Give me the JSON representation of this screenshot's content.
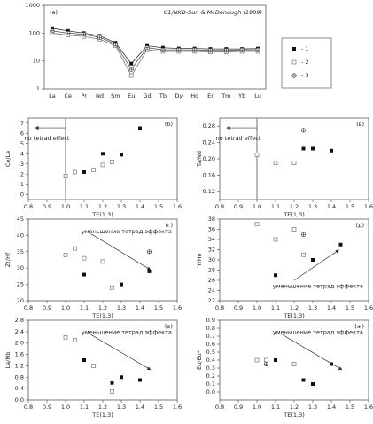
{
  "chart_data": [
    {
      "type": "line",
      "label": "(a)",
      "subtitle": "C1/NKD-Sun & McDonough (1989)",
      "log": true,
      "categories": [
        "La",
        "Ce",
        "Pr",
        "Nd",
        "Sm",
        "Eu",
        "Gd",
        "Tb",
        "Dy",
        "Ho",
        "Er",
        "Tm",
        "Yb",
        "Lu"
      ],
      "ylim": [
        1,
        1000
      ],
      "yticks": [
        1,
        10,
        100,
        1000
      ],
      "series": [
        {
          "name": "- 1",
          "marker": "filled",
          "color": "#333",
          "values": [
            150,
            120,
            100,
            80,
            45,
            8,
            35,
            30,
            28,
            28,
            27,
            27,
            27,
            28
          ]
        },
        {
          "name": "- 2",
          "marker": "open",
          "color": "#777",
          "values": [
            100,
            85,
            75,
            60,
            35,
            3,
            25,
            22,
            22,
            22,
            21,
            21,
            22,
            22
          ]
        },
        {
          "name": "- 3",
          "marker": "crossed",
          "color": "#555",
          "values": [
            120,
            100,
            90,
            70,
            40,
            5,
            30,
            25,
            25,
            25,
            24,
            24,
            25,
            25
          ]
        }
      ]
    },
    {
      "type": "scatter",
      "label": "(б)",
      "xlabel": "TE(1,3)",
      "ylabel": "Ce/La",
      "annotation": "no tetrad effect",
      "arrow": "left",
      "vline": 1,
      "xlim": [
        0.8,
        1.6
      ],
      "xticks": [
        0.8,
        0.9,
        {
          "value": 1,
          "label": "1.0"
        },
        1.1,
        1.2,
        1.3,
        1.4,
        1.5,
        1.6
      ],
      "ylim": [
        -0.5,
        7.5
      ],
      "yticks": [
        0,
        1,
        2,
        3,
        4,
        5,
        6,
        7
      ],
      "series": [
        {
          "marker": "filled",
          "x": [
            1.1,
            1.2,
            1.3,
            1.4
          ],
          "y": [
            2.2,
            4.0,
            3.9,
            6.5
          ]
        },
        {
          "marker": "open",
          "x": [
            1.0,
            1.05,
            1.15,
            1.2,
            1.25
          ],
          "y": [
            1.8,
            2.2,
            2.4,
            2.9,
            3.2
          ]
        }
      ]
    },
    {
      "type": "scatter",
      "label": "(в)",
      "xlabel": "TE(1,3)",
      "ylabel": "Ta/Nd",
      "annotation": "no tetrad effect",
      "arrow": "left",
      "vline": 1,
      "xlim": [
        0.8,
        1.6
      ],
      "xticks": [
        0.8,
        0.9,
        {
          "value": 1,
          "label": "1.0"
        },
        1.1,
        1.2,
        1.3,
        1.4,
        1.5,
        1.6
      ],
      "ylim": [
        0.1,
        0.3
      ],
      "yticks": [
        0.12,
        0.16,
        {
          "value": 0.2,
          "label": "0.20"
        },
        0.24,
        0.28
      ],
      "series": [
        {
          "marker": "filled",
          "x": [
            1.25,
            1.3,
            1.4
          ],
          "y": [
            0.225,
            0.225,
            0.22
          ]
        },
        {
          "marker": "open",
          "x": [
            1.0,
            1.1,
            1.2
          ],
          "y": [
            0.21,
            0.19,
            0.19
          ]
        },
        {
          "marker": "crossed",
          "x": [
            1.25
          ],
          "y": [
            0.27
          ]
        }
      ]
    },
    {
      "type": "scatter",
      "label": "(г)",
      "xlabel": "TE(1,3)",
      "ylabel": "Zr/Hf",
      "annotation": "уменьшение тетрад эффекта",
      "arrow": "down",
      "xlim": [
        0.8,
        1.6
      ],
      "xticks": [
        0.8,
        0.9,
        {
          "value": 1,
          "label": "1.0"
        },
        1.1,
        1.2,
        1.3,
        1.4,
        1.5,
        1.6
      ],
      "ylim": [
        20,
        45
      ],
      "yticks": [
        20,
        25,
        30,
        35,
        40,
        45
      ],
      "series": [
        {
          "marker": "filled",
          "x": [
            1.1,
            1.3,
            1.45
          ],
          "y": [
            28,
            25,
            29
          ]
        },
        {
          "marker": "open",
          "x": [
            1.0,
            1.05,
            1.1,
            1.2,
            1.25
          ],
          "y": [
            34,
            36,
            33,
            32,
            24
          ]
        },
        {
          "marker": "crossed",
          "x": [
            1.45
          ],
          "y": [
            35
          ]
        }
      ]
    },
    {
      "type": "scatter",
      "label": "(д)",
      "xlabel": "TE(1,3)",
      "ylabel": "Y/Ho",
      "annotation": "уменьшение тетрад эффекта",
      "arrow": "up",
      "xlim": [
        0.8,
        1.6
      ],
      "xticks": [
        0.8,
        0.9,
        {
          "value": 1,
          "label": "1.0"
        },
        1.1,
        1.2,
        1.3,
        1.4,
        1.5,
        1.6
      ],
      "ylim": [
        22,
        38
      ],
      "yticks": [
        22,
        24,
        26,
        28,
        30,
        32,
        34,
        36,
        38
      ],
      "series": [
        {
          "marker": "filled",
          "x": [
            1.1,
            1.3,
            1.45
          ],
          "y": [
            27,
            30,
            33
          ]
        },
        {
          "marker": "open",
          "x": [
            1.0,
            1.1,
            1.2,
            1.25
          ],
          "y": [
            37,
            34,
            36,
            31
          ]
        },
        {
          "marker": "crossed",
          "x": [
            1.25
          ],
          "y": [
            35
          ]
        }
      ]
    },
    {
      "type": "scatter",
      "label": "(е)",
      "xlabel": "TE(1,3)",
      "ylabel": "La/Nb",
      "annotation": "уменьшение тетрад эффекта",
      "arrow": "down",
      "xlim": [
        0.8,
        1.6
      ],
      "xticks": [
        0.8,
        0.9,
        {
          "value": 1,
          "label": "1.0"
        },
        1.1,
        1.2,
        1.3,
        1.4,
        1.5,
        1.6
      ],
      "ylim": [
        0,
        2.8
      ],
      "yticks": [
        {
          "value": 0,
          "label": "0.0"
        },
        0.4,
        0.8,
        1.2,
        1.6,
        {
          "value": 2,
          "label": "2.0"
        },
        2.4,
        2.8
      ],
      "series": [
        {
          "marker": "filled",
          "x": [
            1.1,
            1.25,
            1.3,
            1.4
          ],
          "y": [
            1.4,
            0.6,
            0.8,
            0.7
          ]
        },
        {
          "marker": "open",
          "x": [
            1.0,
            1.05,
            1.15,
            1.25
          ],
          "y": [
            2.2,
            2.1,
            1.2,
            0.3
          ]
        }
      ]
    },
    {
      "type": "scatter",
      "label": "(ж)",
      "xlabel": "TE(1,3)",
      "ylabel": "Eu/Eu*",
      "annotation": "уменьшение тетрад эффекта",
      "arrow": "down",
      "xlim": [
        0.8,
        1.6
      ],
      "xticks": [
        0.8,
        0.9,
        {
          "value": 1,
          "label": "1.0"
        },
        1.1,
        1.2,
        1.3,
        1.4,
        1.5,
        1.6
      ],
      "ylim": [
        -0.1,
        0.9
      ],
      "yticks": [
        {
          "value": 0,
          "label": "0.0"
        },
        0.1,
        0.2,
        0.3,
        0.4,
        0.5,
        0.6,
        0.7,
        0.8,
        0.9
      ],
      "series": [
        {
          "marker": "filled",
          "x": [
            1.1,
            1.25,
            1.3,
            1.4
          ],
          "y": [
            0.4,
            0.15,
            0.1,
            0.35
          ]
        },
        {
          "marker": "open",
          "x": [
            1.0,
            1.05,
            1.2
          ],
          "y": [
            0.4,
            0.4,
            0.35
          ]
        },
        {
          "marker": "crossed",
          "x": [
            1.05
          ],
          "y": [
            0.35
          ]
        }
      ]
    }
  ]
}
